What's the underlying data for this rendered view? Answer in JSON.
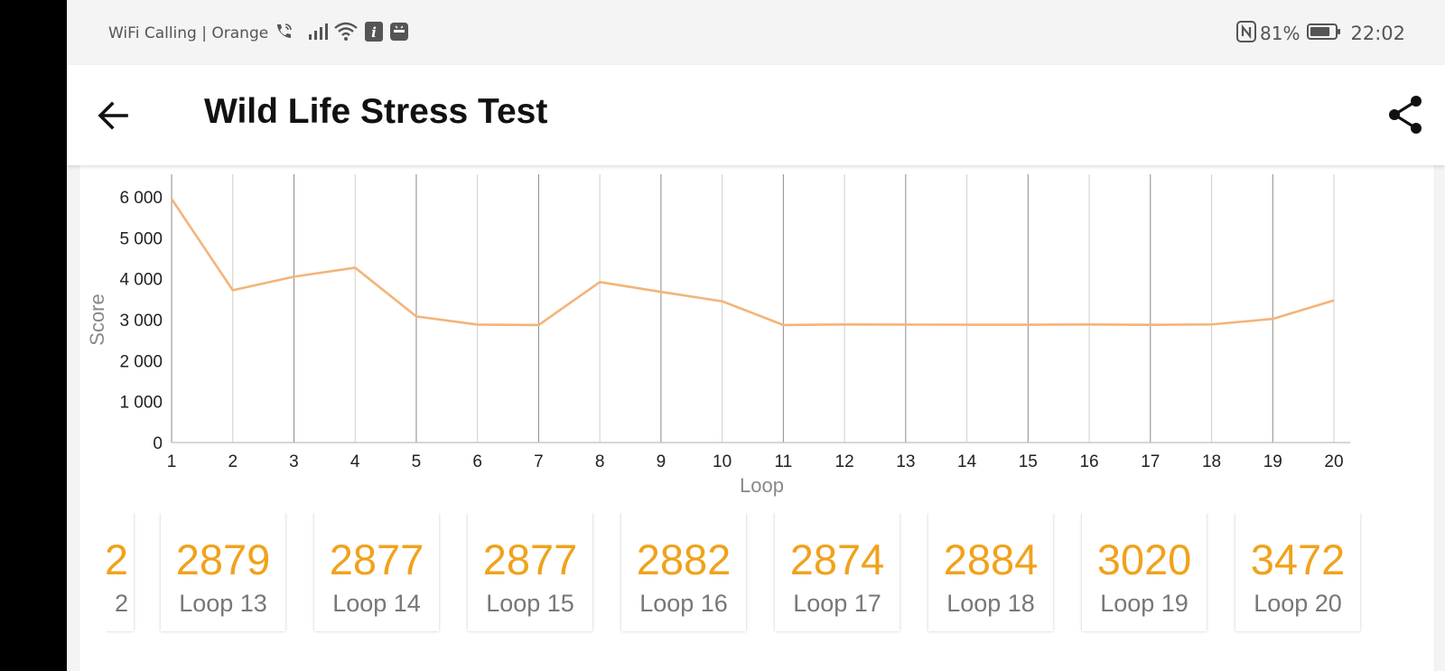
{
  "status_bar": {
    "carrier_text": "WiFi Calling | Orange",
    "battery_percent": "81%",
    "time": "22:02",
    "battery_level": 0.81,
    "icons": [
      "wifi-calling-icon",
      "signal-icon",
      "wifi-icon",
      "info-icon",
      "huawei-app-icon",
      "nfc-icon",
      "battery-icon"
    ]
  },
  "app_bar": {
    "title": "Wild Life Stress Test",
    "back_icon": "arrow-left-icon",
    "share_icon": "share-icon"
  },
  "chart_data": {
    "type": "line",
    "xlabel": "Loop",
    "ylabel": "Score",
    "x": [
      1,
      2,
      3,
      4,
      5,
      6,
      7,
      8,
      9,
      10,
      11,
      12,
      13,
      14,
      15,
      16,
      17,
      18,
      19,
      20
    ],
    "series": [
      {
        "values": [
          5950,
          3720,
          4050,
          4270,
          3080,
          2880,
          2870,
          3920,
          3680,
          3450,
          2870,
          2882,
          2879,
          2877,
          2877,
          2882,
          2874,
          2884,
          3020,
          3472
        ]
      }
    ],
    "yticks": [
      "0",
      "1 000",
      "2 000",
      "3 000",
      "4 000",
      "5 000",
      "6 000"
    ],
    "ylim": [
      0,
      6000
    ],
    "xlim": [
      1,
      20
    ],
    "line_color": "#f3b479",
    "grid": "vertical"
  },
  "loops": {
    "partial": {
      "score": "2",
      "label": "2"
    },
    "items": [
      {
        "score": "2879",
        "label": "Loop 13"
      },
      {
        "score": "2877",
        "label": "Loop 14"
      },
      {
        "score": "2877",
        "label": "Loop 15"
      },
      {
        "score": "2882",
        "label": "Loop 16"
      },
      {
        "score": "2874",
        "label": "Loop 17"
      },
      {
        "score": "2884",
        "label": "Loop 18"
      },
      {
        "score": "3020",
        "label": "Loop 19"
      },
      {
        "score": "3472",
        "label": "Loop 20"
      }
    ]
  },
  "colors": {
    "accent": "#f0a21c",
    "line": "#f3b479",
    "background": "#f4f4f4"
  }
}
